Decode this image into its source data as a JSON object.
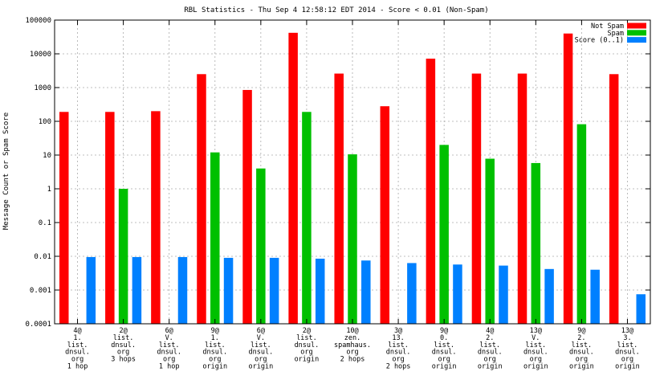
{
  "chart_data": {
    "type": "bar",
    "title": "RBL Statistics - Thu Sep  4 12:58:12 EDT 2014 - Score < 0.01 (Non-Spam)",
    "ylabel": "Message Count or Spam Score",
    "xlabel": "",
    "yscale": "log",
    "ylim": [
      0.0001,
      100000
    ],
    "yticks": [
      "100000",
      "10000",
      "1000",
      "100",
      "10",
      "1",
      "0.1",
      "0.01",
      "0.001",
      "0.0001"
    ],
    "grid": true,
    "legend_position": "top-right",
    "categories": [
      [
        "4@",
        "1.",
        "list.",
        "dnsul.",
        "org",
        "1 hop"
      ],
      [
        "2@",
        "list.",
        "dnsul.",
        "org",
        "3 hops"
      ],
      [
        "6@",
        "V.",
        "list.",
        "dnsul.",
        "org",
        "1 hop"
      ],
      [
        "9@",
        "1.",
        "list.",
        "dnsul.",
        "org",
        "origin"
      ],
      [
        "6@",
        "V.",
        "list.",
        "dnsul.",
        "org",
        "origin"
      ],
      [
        "2@",
        "list.",
        "dnsul.",
        "org",
        "origin"
      ],
      [
        "10@",
        "zen.",
        "spamhaus.",
        "org",
        "2 hops"
      ],
      [
        "3@",
        "13.",
        "list.",
        "dnsul.",
        "org",
        "2 hops"
      ],
      [
        "9@",
        "0.",
        "list.",
        "dnsul.",
        "org",
        "origin"
      ],
      [
        "4@",
        "2.",
        "list.",
        "dnsul.",
        "org",
        "origin"
      ],
      [
        "13@",
        "V.",
        "list.",
        "dnsul.",
        "org",
        "origin"
      ],
      [
        "9@",
        "2.",
        "list.",
        "dnsul.",
        "org",
        "origin"
      ],
      [
        "13@",
        "3.",
        "list.",
        "dnsul.",
        "org",
        "origin"
      ]
    ],
    "series": [
      {
        "name": "Not Spam",
        "color": "#ff0000",
        "values": [
          190,
          190,
          200,
          2500,
          850,
          42000,
          2600,
          280,
          7200,
          2600,
          2600,
          40000,
          2500
        ]
      },
      {
        "name": "Spam",
        "color": "#00c000",
        "values": [
          null,
          1,
          null,
          12,
          4,
          190,
          10.5,
          null,
          20,
          7.8,
          5.8,
          82,
          null
        ]
      },
      {
        "name": "Score (0..1)",
        "color": "#0080ff",
        "values": [
          0.0095,
          0.0095,
          0.0095,
          0.009,
          0.009,
          0.0085,
          0.0075,
          0.0063,
          0.0057,
          0.0053,
          0.0042,
          0.004,
          0.00075
        ]
      }
    ]
  }
}
